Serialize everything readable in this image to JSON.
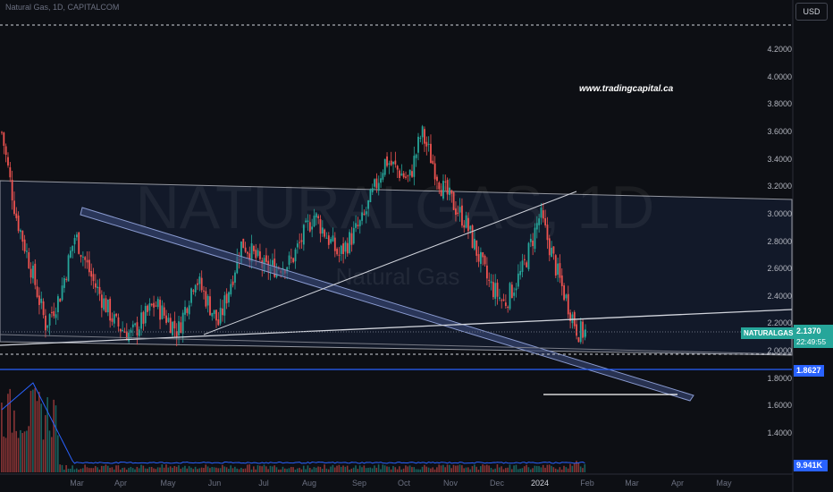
{
  "header": {
    "title": "Natural Gas, 1D, CAPITALCOM",
    "currency_button": "USD"
  },
  "watermark": {
    "symbol": "NATURALGAS, 1D",
    "name": "Natural Gas"
  },
  "annotation": {
    "text": "www.tradingcapital.ca"
  },
  "price_axis": {
    "ticks": [
      "4.2000",
      "4.0000",
      "3.8000",
      "3.6000",
      "3.4000",
      "3.2000",
      "3.0000",
      "2.8000",
      "2.6000",
      "2.4000",
      "2.2000",
      "2.0000",
      "1.8000",
      "1.6000",
      "1.4000"
    ],
    "last_price": {
      "symbol": "NATURALGAS",
      "price": "2.1370",
      "countdown": "22:49:55",
      "color": "#26a69a"
    },
    "line_level": {
      "price": "1.8627",
      "color": "#2962ff"
    },
    "volume_value": {
      "text": "9.941K",
      "color": "#2962ff"
    }
  },
  "time_axis": {
    "labels": [
      "Mar",
      "Apr",
      "May",
      "Jun",
      "Jul",
      "Aug",
      "Sep",
      "Oct",
      "Nov",
      "Dec",
      "2024",
      "Feb",
      "Mar",
      "Apr",
      "May"
    ]
  },
  "colors": {
    "up": "#26a69a",
    "down": "#ef5350",
    "background": "#0d0f14",
    "channel_fill": "#141b2d",
    "trendline": "#d1d4dc",
    "wedge": "#3a4a7a",
    "volume_ma": "#2962ff"
  },
  "chart_data": {
    "type": "candlestick",
    "title": "Natural Gas, 1D, CAPITALCOM",
    "series_name": "NATURALGAS",
    "interval": "1D",
    "y_axis_range": [
      1.3,
      4.25
    ],
    "x_range": [
      "2023-02",
      "2024-05"
    ],
    "price_path": [
      {
        "date": "2023-02-01",
        "price": 3.6
      },
      {
        "date": "2023-02-10",
        "price": 3.0
      },
      {
        "date": "2023-02-20",
        "price": 2.6
      },
      {
        "date": "2023-03-01",
        "price": 2.2
      },
      {
        "date": "2023-03-10",
        "price": 2.4
      },
      {
        "date": "2023-03-20",
        "price": 2.85
      },
      {
        "date": "2023-04-01",
        "price": 2.5
      },
      {
        "date": "2023-04-15",
        "price": 2.2
      },
      {
        "date": "2023-04-25",
        "price": 2.12
      },
      {
        "date": "2023-05-10",
        "price": 2.35
      },
      {
        "date": "2023-05-25",
        "price": 2.15
      },
      {
        "date": "2023-06-05",
        "price": 2.55
      },
      {
        "date": "2023-06-20",
        "price": 2.2
      },
      {
        "date": "2023-07-05",
        "price": 2.8
      },
      {
        "date": "2023-07-20",
        "price": 2.6
      },
      {
        "date": "2023-08-05",
        "price": 2.65
      },
      {
        "date": "2023-08-20",
        "price": 3.0
      },
      {
        "date": "2023-09-05",
        "price": 2.7
      },
      {
        "date": "2023-09-20",
        "price": 2.95
      },
      {
        "date": "2023-10-05",
        "price": 3.4
      },
      {
        "date": "2023-10-20",
        "price": 3.25
      },
      {
        "date": "2023-10-28",
        "price": 3.6
      },
      {
        "date": "2023-11-10",
        "price": 3.2
      },
      {
        "date": "2023-11-25",
        "price": 2.95
      },
      {
        "date": "2023-12-10",
        "price": 2.5
      },
      {
        "date": "2023-12-20",
        "price": 2.35
      },
      {
        "date": "2024-01-01",
        "price": 2.6
      },
      {
        "date": "2024-01-12",
        "price": 3.0
      },
      {
        "date": "2024-01-25",
        "price": 2.5
      },
      {
        "date": "2024-02-05",
        "price": 2.15
      },
      {
        "date": "2024-02-10",
        "price": 2.137
      }
    ],
    "last_price": 2.137,
    "horizontal_line": 1.8627,
    "volume_ma_last": "9.941K"
  }
}
